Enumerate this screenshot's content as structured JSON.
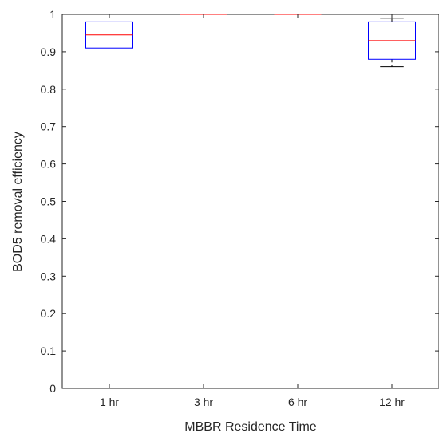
{
  "chart_data": {
    "type": "box",
    "title": "",
    "xlabel": "MBBR Residence Time",
    "ylabel": "BOD5 removal efficiency",
    "categories": [
      "1 hr",
      "3 hr",
      "6 hr",
      "12 hr"
    ],
    "ylim": [
      0,
      1
    ],
    "yticks": [
      0,
      0.1,
      0.2,
      0.3,
      0.4,
      0.5,
      0.6,
      0.7,
      0.8,
      0.9,
      1
    ],
    "ytick_labels": [
      "0",
      "0.1",
      "0.2",
      "0.3",
      "0.4",
      "0.5",
      "0.6",
      "0.7",
      "0.8",
      "0.9",
      "1"
    ],
    "grid": false,
    "boxes": [
      {
        "category": "1 hr",
        "whisker_low": 0.91,
        "q1": 0.91,
        "median": 0.945,
        "q3": 0.98,
        "whisker_high": 0.98
      },
      {
        "category": "3 hr",
        "whisker_low": 1.0,
        "q1": 1.0,
        "median": 1.0,
        "q3": 1.0,
        "whisker_high": 1.0
      },
      {
        "category": "6 hr",
        "whisker_low": 1.0,
        "q1": 1.0,
        "median": 1.0,
        "q3": 1.0,
        "whisker_high": 1.0
      },
      {
        "category": "12 hr",
        "whisker_low": 0.86,
        "q1": 0.88,
        "median": 0.93,
        "q3": 0.98,
        "whisker_high": 0.99
      }
    ],
    "colors": {
      "box": "#0000ff",
      "median": "#ff0000",
      "whisker": "#000000",
      "axis": "#262626"
    }
  }
}
